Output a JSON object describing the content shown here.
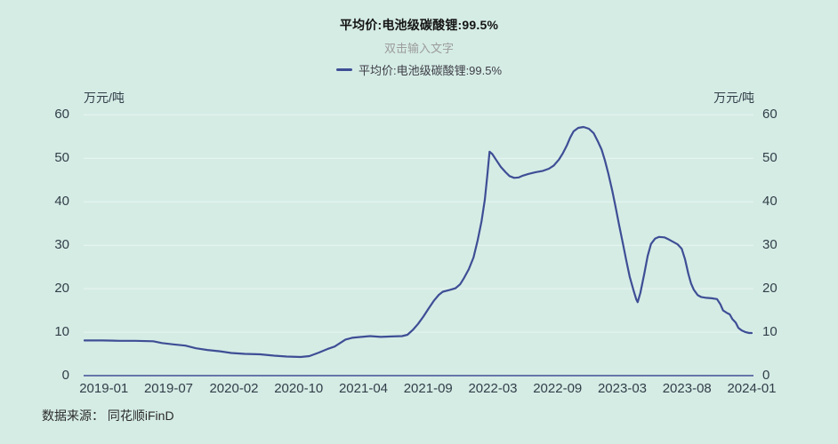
{
  "header": {
    "title": "平均价:电池级碳酸锂:99.5%",
    "subtitle": "双击输入文字"
  },
  "legend": {
    "label": "平均价:电池级碳酸锂:99.5%"
  },
  "axis_units": {
    "left": "万元/吨",
    "right": "万元/吨"
  },
  "source": {
    "text": "数据来源： 同花顺iFinD"
  },
  "colors": {
    "background": "#d5ece5",
    "line": "#3e4e95",
    "grid": "#e9f6f1",
    "axis": "#3e4e95",
    "tick_text": "#323e48",
    "title_text": "#141414",
    "subtitle_text": "#9c9c9c",
    "legend_text": "#3e3e46",
    "source_text": "#2b2b2b"
  },
  "chart_data": {
    "type": "line",
    "title": "平均价:电池级碳酸锂:99.5%",
    "ylabel": "万元/吨",
    "ylim": [
      0,
      60
    ],
    "y_ticks": [
      0,
      10,
      20,
      30,
      40,
      50,
      60
    ],
    "grid": "horizontal",
    "legend_position": "top-center",
    "x_range": [
      "2019-01",
      "2024-01"
    ],
    "x_ticks": [
      {
        "label": "2019-01",
        "t": 0.029
      },
      {
        "label": "2019-07",
        "t": 0.126
      },
      {
        "label": "2020-02",
        "t": 0.224
      },
      {
        "label": "2020-10",
        "t": 0.321
      },
      {
        "label": "2021-04",
        "t": 0.418
      },
      {
        "label": "2021-09",
        "t": 0.515
      },
      {
        "label": "2022-03",
        "t": 0.612
      },
      {
        "label": "2022-09",
        "t": 0.709
      },
      {
        "label": "2023-03",
        "t": 0.806
      },
      {
        "label": "2023-08",
        "t": 0.903
      },
      {
        "label": "2024-01",
        "t": 1.0
      }
    ],
    "series": [
      {
        "name": "平均价:电池级碳酸锂:99.5%",
        "unit": "万元/吨",
        "points": [
          [
            0.0,
            8.1
          ],
          [
            0.027,
            8.1
          ],
          [
            0.053,
            8.0
          ],
          [
            0.076,
            8.0
          ],
          [
            0.103,
            7.9
          ],
          [
            0.116,
            7.5
          ],
          [
            0.133,
            7.2
          ],
          [
            0.151,
            6.9
          ],
          [
            0.167,
            6.3
          ],
          [
            0.184,
            5.9
          ],
          [
            0.203,
            5.6
          ],
          [
            0.22,
            5.2
          ],
          [
            0.24,
            5.0
          ],
          [
            0.263,
            4.9
          ],
          [
            0.284,
            4.6
          ],
          [
            0.303,
            4.4
          ],
          [
            0.324,
            4.3
          ],
          [
            0.337,
            4.5
          ],
          [
            0.351,
            5.3
          ],
          [
            0.364,
            6.1
          ],
          [
            0.375,
            6.7
          ],
          [
            0.383,
            7.5
          ],
          [
            0.391,
            8.3
          ],
          [
            0.401,
            8.7
          ],
          [
            0.415,
            8.9
          ],
          [
            0.428,
            9.1
          ],
          [
            0.444,
            8.9
          ],
          [
            0.46,
            9.0
          ],
          [
            0.476,
            9.1
          ],
          [
            0.484,
            9.4
          ],
          [
            0.492,
            10.5
          ],
          [
            0.5,
            11.9
          ],
          [
            0.508,
            13.6
          ],
          [
            0.516,
            15.5
          ],
          [
            0.524,
            17.3
          ],
          [
            0.531,
            18.6
          ],
          [
            0.537,
            19.3
          ],
          [
            0.547,
            19.7
          ],
          [
            0.556,
            20.1
          ],
          [
            0.563,
            21.0
          ],
          [
            0.569,
            22.5
          ],
          [
            0.576,
            24.5
          ],
          [
            0.583,
            27.2
          ],
          [
            0.589,
            31.0
          ],
          [
            0.595,
            35.5
          ],
          [
            0.6,
            40.5
          ],
          [
            0.604,
            46.5
          ],
          [
            0.607,
            51.5
          ],
          [
            0.611,
            51.0
          ],
          [
            0.617,
            49.6
          ],
          [
            0.624,
            48.0
          ],
          [
            0.631,
            46.8
          ],
          [
            0.637,
            45.9
          ],
          [
            0.644,
            45.5
          ],
          [
            0.651,
            45.6
          ],
          [
            0.657,
            46.0
          ],
          [
            0.665,
            46.4
          ],
          [
            0.676,
            46.8
          ],
          [
            0.687,
            47.1
          ],
          [
            0.696,
            47.6
          ],
          [
            0.703,
            48.3
          ],
          [
            0.711,
            49.7
          ],
          [
            0.717,
            51.2
          ],
          [
            0.723,
            53.0
          ],
          [
            0.728,
            54.8
          ],
          [
            0.733,
            56.2
          ],
          [
            0.74,
            57.0
          ],
          [
            0.748,
            57.2
          ],
          [
            0.756,
            56.8
          ],
          [
            0.763,
            55.8
          ],
          [
            0.769,
            54.0
          ],
          [
            0.775,
            52.0
          ],
          [
            0.78,
            49.5
          ],
          [
            0.785,
            46.5
          ],
          [
            0.791,
            42.5
          ],
          [
            0.796,
            38.8
          ],
          [
            0.801,
            34.8
          ],
          [
            0.807,
            30.3
          ],
          [
            0.812,
            26.5
          ],
          [
            0.817,
            22.8
          ],
          [
            0.823,
            19.5
          ],
          [
            0.827,
            17.5
          ],
          [
            0.829,
            16.9
          ],
          [
            0.833,
            19.0
          ],
          [
            0.839,
            23.5
          ],
          [
            0.844,
            27.5
          ],
          [
            0.849,
            30.3
          ],
          [
            0.855,
            31.5
          ],
          [
            0.861,
            31.9
          ],
          [
            0.869,
            31.8
          ],
          [
            0.876,
            31.3
          ],
          [
            0.883,
            30.7
          ],
          [
            0.889,
            30.2
          ],
          [
            0.895,
            29.2
          ],
          [
            0.9,
            26.8
          ],
          [
            0.905,
            23.4
          ],
          [
            0.909,
            21.2
          ],
          [
            0.913,
            19.8
          ],
          [
            0.919,
            18.5
          ],
          [
            0.924,
            18.1
          ],
          [
            0.932,
            17.9
          ],
          [
            0.94,
            17.8
          ],
          [
            0.948,
            17.6
          ],
          [
            0.953,
            16.4
          ],
          [
            0.957,
            15.0
          ],
          [
            0.963,
            14.4
          ],
          [
            0.967,
            14.1
          ],
          [
            0.971,
            13.0
          ],
          [
            0.976,
            12.2
          ],
          [
            0.98,
            11.0
          ],
          [
            0.985,
            10.4
          ],
          [
            0.991,
            10.0
          ],
          [
            0.996,
            9.8
          ],
          [
            1.0,
            9.8
          ]
        ]
      }
    ]
  }
}
